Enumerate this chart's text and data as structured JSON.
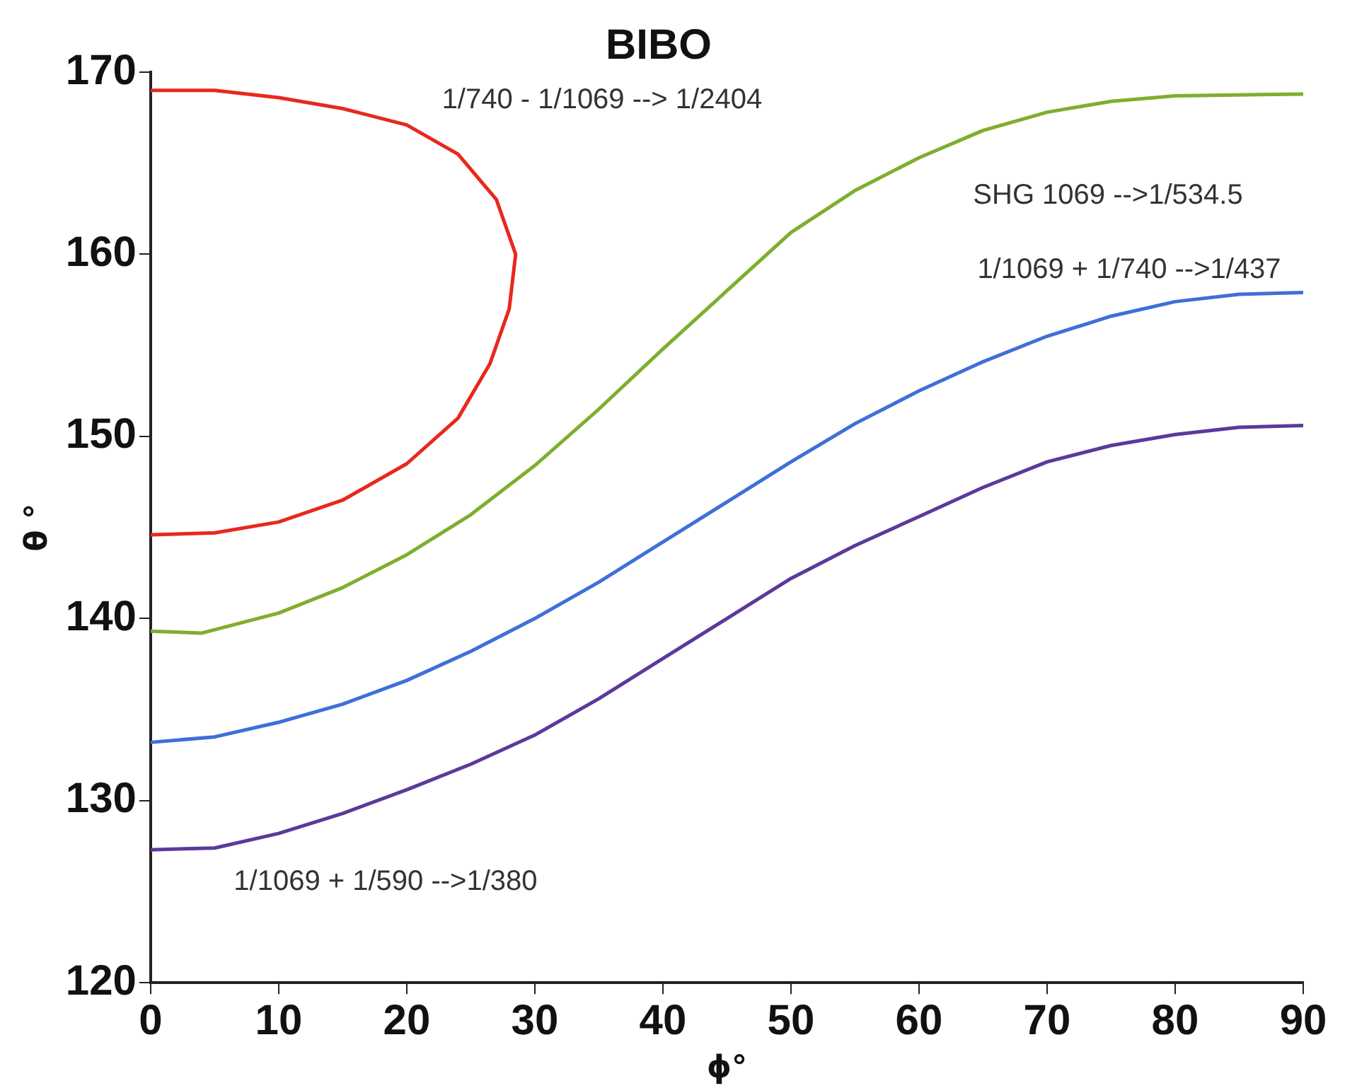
{
  "chart_data": {
    "type": "line",
    "title": "BIBO",
    "xlabel": "ϕ°",
    "ylabel": "θ °",
    "xlim": [
      0,
      90
    ],
    "xticks": [
      0,
      10,
      20,
      30,
      40,
      50,
      60,
      70,
      80,
      90
    ],
    "ylim": [
      120,
      170
    ],
    "yticks": [
      120,
      130,
      140,
      150,
      160,
      170
    ],
    "grid": false,
    "legend": false,
    "marker": "none",
    "line_style": "solid",
    "series": [
      {
        "name": "1/740 - 1/1069 --> 1/2404",
        "color": "#e8281e",
        "x": [
          0,
          5,
          10,
          15,
          20,
          24,
          27,
          28.5,
          28,
          26.5,
          24,
          20,
          15,
          10,
          5,
          0
        ],
        "values": [
          169.0,
          169.0,
          168.6,
          168.0,
          167.1,
          165.5,
          163,
          160,
          157,
          154,
          151,
          148.5,
          146.5,
          145.3,
          144.7,
          144.6
        ]
      },
      {
        "name": "SHG 1069 -->1/534.5",
        "color": "#7fae2e",
        "x": [
          0,
          4,
          10,
          15,
          20,
          25,
          30,
          35,
          40,
          45,
          50,
          55,
          60,
          65,
          70,
          75,
          80,
          90
        ],
        "values": [
          139.3,
          139.2,
          140.3,
          141.7,
          143.5,
          145.7,
          148.4,
          151.5,
          154.8,
          158,
          161.2,
          163.5,
          165.3,
          166.8,
          167.8,
          168.4,
          168.7,
          168.8
        ]
      },
      {
        "name": "1/1069 + 1/740 -->1/437",
        "color": "#3f6fd8",
        "x": [
          0,
          5,
          10,
          15,
          20,
          25,
          30,
          35,
          40,
          45,
          50,
          55,
          60,
          65,
          70,
          75,
          80,
          85,
          90
        ],
        "values": [
          133.2,
          133.5,
          134.3,
          135.3,
          136.6,
          138.2,
          140,
          142,
          144.2,
          146.4,
          148.6,
          150.7,
          152.5,
          154.1,
          155.5,
          156.6,
          157.4,
          157.8,
          157.9
        ]
      },
      {
        "name": "1/1069 + 1/590 -->1/380",
        "color": "#5b3a9a",
        "x": [
          0,
          5,
          10,
          15,
          20,
          25,
          30,
          35,
          40,
          45,
          50,
          55,
          60,
          65,
          70,
          75,
          80,
          85,
          90
        ],
        "values": [
          127.3,
          127.4,
          128.2,
          129.3,
          130.6,
          132,
          133.6,
          135.6,
          137.8,
          140,
          142.2,
          144,
          145.6,
          147.2,
          148.6,
          149.5,
          150.1,
          150.5,
          150.6
        ]
      }
    ]
  }
}
